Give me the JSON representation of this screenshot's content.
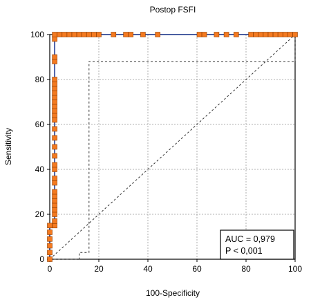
{
  "chart_data": {
    "type": "line",
    "title": "Postop FSFI",
    "xlabel": "100-Specificity",
    "ylabel": "Sensitivity",
    "xlim": [
      0,
      100
    ],
    "ylim": [
      0,
      100
    ],
    "x_ticks": [
      0,
      20,
      40,
      60,
      80,
      100
    ],
    "y_ticks": [
      0,
      20,
      40,
      60,
      80,
      100
    ],
    "grid": true,
    "colors": {
      "roc_line": "#1f3a93",
      "marker_fill": "#f47a20",
      "marker_stroke": "#8a3a00",
      "ci_line": "#333333",
      "diagonal": "#333333"
    },
    "series": [
      {
        "style": "solid-with-markers",
        "points": [
          {
            "x": 0,
            "y": 0
          },
          {
            "x": 0,
            "y": 3
          },
          {
            "x": 0,
            "y": 6
          },
          {
            "x": 0,
            "y": 9
          },
          {
            "x": 0,
            "y": 12
          },
          {
            "x": 0,
            "y": 15
          },
          {
            "x": 2,
            "y": 15
          },
          {
            "x": 2,
            "y": 17
          },
          {
            "x": 2,
            "y": 20
          },
          {
            "x": 2,
            "y": 22
          },
          {
            "x": 2,
            "y": 24
          },
          {
            "x": 2,
            "y": 26
          },
          {
            "x": 2,
            "y": 28
          },
          {
            "x": 2,
            "y": 30
          },
          {
            "x": 2,
            "y": 34
          },
          {
            "x": 2,
            "y": 36
          },
          {
            "x": 2,
            "y": 40
          },
          {
            "x": 2,
            "y": 42
          },
          {
            "x": 2,
            "y": 46
          },
          {
            "x": 2,
            "y": 50
          },
          {
            "x": 2,
            "y": 54
          },
          {
            "x": 2,
            "y": 58
          },
          {
            "x": 2,
            "y": 62
          },
          {
            "x": 2,
            "y": 64
          },
          {
            "x": 2,
            "y": 66
          },
          {
            "x": 2,
            "y": 68
          },
          {
            "x": 2,
            "y": 70
          },
          {
            "x": 2,
            "y": 72
          },
          {
            "x": 2,
            "y": 74
          },
          {
            "x": 2,
            "y": 76
          },
          {
            "x": 2,
            "y": 78
          },
          {
            "x": 2,
            "y": 80
          },
          {
            "x": 2,
            "y": 88
          },
          {
            "x": 2,
            "y": 90
          },
          {
            "x": 2,
            "y": 98
          },
          {
            "x": 2,
            "y": 100
          },
          {
            "x": 4,
            "y": 100
          },
          {
            "x": 6,
            "y": 100
          },
          {
            "x": 8,
            "y": 100
          },
          {
            "x": 10,
            "y": 100
          },
          {
            "x": 12,
            "y": 100
          },
          {
            "x": 14,
            "y": 100
          },
          {
            "x": 16,
            "y": 100
          },
          {
            "x": 18,
            "y": 100
          },
          {
            "x": 20,
            "y": 100
          },
          {
            "x": 26,
            "y": 100
          },
          {
            "x": 31,
            "y": 100
          },
          {
            "x": 33,
            "y": 100
          },
          {
            "x": 38,
            "y": 100
          },
          {
            "x": 44,
            "y": 100
          },
          {
            "x": 61,
            "y": 100
          },
          {
            "x": 63,
            "y": 100
          },
          {
            "x": 68,
            "y": 100
          },
          {
            "x": 72,
            "y": 100
          },
          {
            "x": 76,
            "y": 100
          },
          {
            "x": 82,
            "y": 100
          },
          {
            "x": 84,
            "y": 100
          },
          {
            "x": 86,
            "y": 100
          },
          {
            "x": 88,
            "y": 100
          },
          {
            "x": 90,
            "y": 100
          },
          {
            "x": 92,
            "y": 100
          },
          {
            "x": 94,
            "y": 100
          },
          {
            "x": 96,
            "y": 100
          },
          {
            "x": 98,
            "y": 100
          },
          {
            "x": 100,
            "y": 100
          }
        ]
      },
      {
        "style": "dashed-step",
        "points": [
          {
            "x": 0,
            "y": 0
          },
          {
            "x": 12,
            "y": 0
          },
          {
            "x": 12,
            "y": 3
          },
          {
            "x": 16,
            "y": 3
          },
          {
            "x": 16,
            "y": 88
          },
          {
            "x": 100,
            "y": 88
          },
          {
            "x": 100,
            "y": 100
          }
        ]
      },
      {
        "style": "dashed-diagonal",
        "points": [
          {
            "x": 0,
            "y": 0
          },
          {
            "x": 100,
            "y": 100
          }
        ]
      }
    ],
    "annotation": {
      "auc": "AUC = 0,979",
      "p": "P < 0,001",
      "position": "bottom-right"
    }
  }
}
